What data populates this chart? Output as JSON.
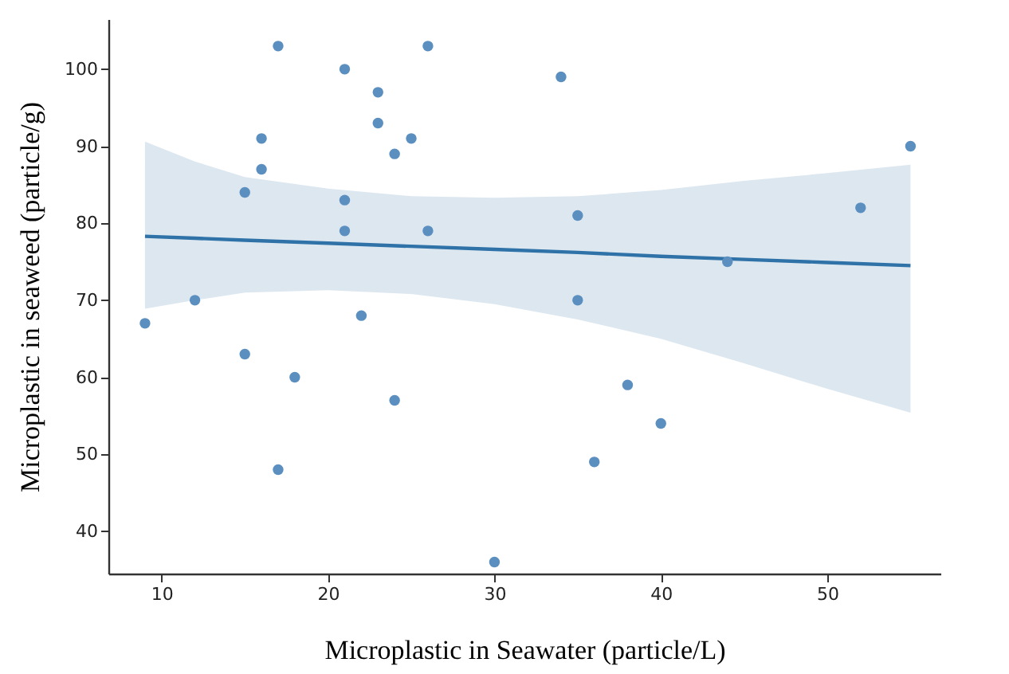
{
  "chart_data": {
    "type": "scatter",
    "xlabel": "Microplastic in Seawater (particle/L)",
    "ylabel": "Microplastic in seaweed (particle/g)",
    "xlim": [
      6.8,
      56.8
    ],
    "ylim": [
      34.5,
      106.5
    ],
    "xticks": [
      10,
      20,
      30,
      40,
      50
    ],
    "yticks": [
      40,
      50,
      60,
      70,
      80,
      90,
      100
    ],
    "grid": false,
    "series": [
      {
        "type": "scatter",
        "marker": "circle",
        "color": "#5b8fc0",
        "x": [
          9,
          12,
          15,
          15,
          16,
          16,
          17,
          17,
          18,
          21,
          21,
          21,
          22,
          23,
          23,
          24,
          24,
          25,
          26,
          26,
          30,
          34,
          35,
          35,
          36,
          38,
          40,
          44,
          52,
          55
        ],
        "values": [
          67,
          70,
          84,
          63,
          91,
          87,
          103,
          48,
          60,
          100,
          83,
          79,
          68,
          97,
          93,
          89,
          57,
          91,
          103,
          79,
          36,
          99,
          81,
          70,
          49,
          59,
          54,
          75,
          82,
          90
        ]
      },
      {
        "type": "line",
        "color": "#2f72a8",
        "x": [
          9,
          12,
          15,
          20,
          25,
          30,
          35,
          40,
          45,
          50,
          55
        ],
        "values": [
          78.3,
          78.05,
          77.8,
          77.4,
          77.0,
          76.6,
          76.2,
          75.7,
          75.3,
          74.9,
          74.5
        ],
        "lower": [
          68.9,
          70,
          71,
          71.3,
          70.8,
          69.5,
          67.5,
          65,
          61.8,
          58.5,
          55.4
        ],
        "upper": [
          90.6,
          88,
          86,
          84.5,
          83.5,
          83.3,
          83.5,
          84.3,
          85.5,
          86.5,
          87.6
        ]
      }
    ]
  }
}
